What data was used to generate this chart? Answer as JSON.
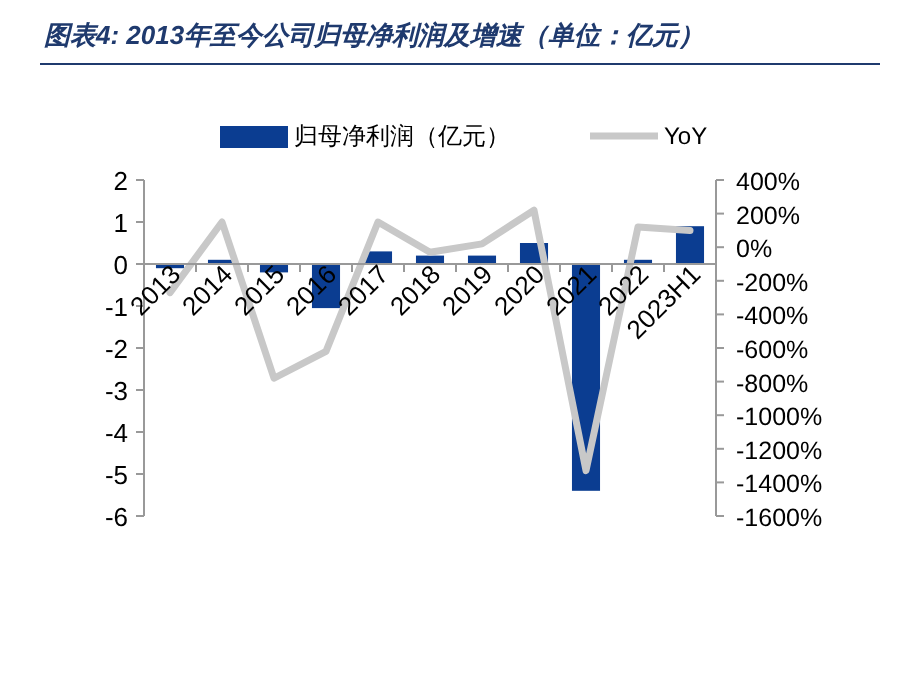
{
  "chart_data": {
    "type": "bar",
    "title": "图表4:  2013年至今公司归母净利润及增速（单位：亿元）",
    "categories": [
      "2013",
      "2014",
      "2015",
      "2016",
      "2017",
      "2018",
      "2019",
      "2020",
      "2021",
      "2022",
      "2023H1"
    ],
    "series": [
      {
        "name": "归母净利润（亿元）",
        "color": "#0b3d91",
        "values": [
          -0.1,
          0.1,
          -0.2,
          -1.05,
          0.3,
          0.2,
          0.2,
          0.5,
          -5.4,
          0.1,
          0.9
        ]
      },
      {
        "name": "YoY",
        "type": "line",
        "axis": "y2",
        "color": "#c8c8c8",
        "values": [
          -270,
          150,
          -780,
          -620,
          150,
          -30,
          20,
          220,
          -1330,
          120,
          100
        ]
      }
    ],
    "ylim": [
      -6,
      2
    ],
    "yticks": [
      -6,
      -5,
      -4,
      -3,
      -2,
      -1,
      0,
      1,
      2
    ],
    "y2lim": [
      -1600,
      400
    ],
    "y2ticks": [
      {
        "value": -1600,
        "label": "-1600%"
      },
      {
        "value": -1400,
        "label": "-1400%"
      },
      {
        "value": -1200,
        "label": "-1200%"
      },
      {
        "value": -1000,
        "label": "-1000%"
      },
      {
        "value": -800,
        "label": "-800%"
      },
      {
        "value": -600,
        "label": "-600%"
      },
      {
        "value": -400,
        "label": "-400%"
      },
      {
        "value": -200,
        "label": "-200%"
      },
      {
        "value": 0,
        "label": "0%"
      },
      {
        "value": 200,
        "label": "200%"
      },
      {
        "value": 400,
        "label": "400%"
      }
    ],
    "legend": "top",
    "grid": false
  }
}
